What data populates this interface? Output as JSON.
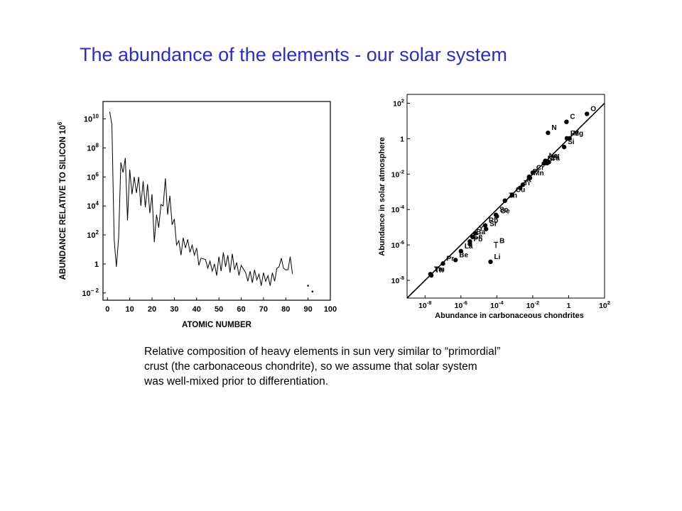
{
  "colors": {
    "title": "#2b2bd4",
    "ink": "#000000",
    "background": "#ffffff"
  },
  "title": "The abundance of the elements - our solar system",
  "caption": {
    "lines": [
      "Relative composition of heavy elements in sun very similar to “primordial”",
      "crust (the carbonaceous chondrite), so we assume that solar system",
      "was well-mixed prior to differentiation."
    ]
  },
  "chart_data": [
    {
      "type": "line",
      "title": "",
      "xlabel": "ATOMIC NUMBER",
      "ylabel": "ABUNDANCE RELATIVE TO SILICON 10",
      "ylabel_superscript": "6",
      "xlim": [
        -2,
        100
      ],
      "ylim_log10": [
        -2.5,
        11.2
      ],
      "y_scale": "log",
      "grid": false,
      "legend": "none",
      "x_ticks": [
        "0",
        "10",
        "20",
        "30",
        "40",
        "50",
        "60",
        "70",
        "80",
        "90",
        "100"
      ],
      "y_ticks": [
        {
          "base": "10",
          "exp": "10"
        },
        {
          "base": "10",
          "exp": "8"
        },
        {
          "base": "10",
          "exp": "6"
        },
        {
          "base": "10",
          "exp": "4"
        },
        {
          "base": "10",
          "exp": "2"
        },
        {
          "base": "1",
          "exp": ""
        },
        {
          "base": "10",
          "exp": "− 2"
        }
      ],
      "y_ticks_log10": [
        10,
        8,
        6,
        4,
        2,
        0,
        -2
      ],
      "series": [
        {
          "x": [
            1,
            2,
            3,
            4,
            5,
            6,
            7,
            8,
            9,
            10,
            11,
            12,
            13,
            14,
            15,
            16,
            17,
            18,
            19,
            20,
            21,
            22,
            23,
            24,
            25,
            26,
            27,
            28,
            29,
            30,
            31,
            32,
            33,
            34,
            35,
            36,
            37,
            38,
            39,
            40,
            41,
            42,
            44,
            45,
            46,
            47,
            48,
            49,
            50,
            51,
            52,
            53,
            54,
            55,
            56,
            57,
            58,
            59,
            60,
            62,
            63,
            64,
            65,
            66,
            67,
            68,
            69,
            70,
            71,
            72,
            73,
            74,
            75,
            76,
            77,
            78,
            79,
            80,
            81,
            82,
            83
          ],
          "log10_y": [
            10.5,
            9.6,
            1.7,
            -0.2,
            1.8,
            7.0,
            6.3,
            7.3,
            3.0,
            6.5,
            4.8,
            6.0,
            4.9,
            6.0,
            4.0,
            5.7,
            3.9,
            5.5,
            3.5,
            4.8,
            1.5,
            3.4,
            2.5,
            4.1,
            4.0,
            5.9,
            3.4,
            4.7,
            2.7,
            3.1,
            1.3,
            1.6,
            0.6,
            1.8,
            1.1,
            1.7,
            0.8,
            1.3,
            0.6,
            1.1,
            -0.1,
            0.4,
            0.3,
            -0.3,
            0.2,
            -0.5,
            0.0,
            -0.8,
            0.5,
            -0.5,
            0.8,
            -0.2,
            0.6,
            -0.6,
            0.7,
            -0.4,
            0.1,
            -0.8,
            -0.1,
            -0.6,
            -1.2,
            -0.5,
            -1.3,
            -0.4,
            -1.1,
            -0.7,
            -1.5,
            -0.6,
            -1.2,
            -0.8,
            -1.5,
            -0.6,
            -1.2,
            -0.3,
            -0.2,
            0.4,
            -0.3,
            -0.4,
            -0.4,
            0.5,
            -0.7
          ]
        },
        {
          "name": "",
          "points": [
            [
              90,
              -1.5
            ],
            [
              92,
              -1.9
            ]
          ]
        }
      ]
    },
    {
      "type": "scatter",
      "title": "",
      "xlabel": "Abundance in carbonaceous chondrites",
      "ylabel": "Abundance in solar atmosphere",
      "x_scale": "log",
      "y_scale": "log",
      "xlim_log10": [
        -9,
        2
      ],
      "ylim_log10": [
        -9,
        2.5
      ],
      "grid": false,
      "legend": "none",
      "reference_line": "y = x",
      "x_ticks": [
        {
          "base": "10",
          "exp": "-8",
          "log10": -8
        },
        {
          "base": "10",
          "exp": "-6",
          "log10": -6
        },
        {
          "base": "10",
          "exp": "-4",
          "log10": -4
        },
        {
          "base": "10",
          "exp": "-2",
          "log10": -2
        },
        {
          "base": "1",
          "exp": "",
          "log10": 0
        },
        {
          "base": "10",
          "exp": "2",
          "log10": 2
        }
      ],
      "y_ticks": [
        {
          "base": "10",
          "exp": "2",
          "log10": 2
        },
        {
          "base": "1",
          "exp": "",
          "log10": 0
        },
        {
          "base": "10",
          "exp": "-2",
          "log10": -2
        },
        {
          "base": "10",
          "exp": "-4",
          "log10": -4
        },
        {
          "base": "10",
          "exp": "-6",
          "log10": -6
        },
        {
          "base": "10",
          "exp": "-8",
          "log10": -8
        }
      ],
      "points": [
        {
          "label": "O",
          "log_x": 1.02,
          "log_y": 1.4
        },
        {
          "label": "C",
          "log_x": -0.12,
          "log_y": 0.95
        },
        {
          "label": "N",
          "log_x": -1.15,
          "log_y": 0.33
        },
        {
          "label": "Fe",
          "log_x": -0.1,
          "log_y": 0.02
        },
        {
          "label": "Mg",
          "log_x": 0.05,
          "log_y": 0.02
        },
        {
          "label": "Si",
          "log_x": -0.25,
          "log_y": -0.47
        },
        {
          "label": "Na",
          "log_x": -1.3,
          "log_y": -1.25
        },
        {
          "label": "Al",
          "log_x": -1.1,
          "log_y": -1.32
        },
        {
          "label": "Ni",
          "log_x": -1.38,
          "log_y": -1.4
        },
        {
          "label": "Ca",
          "log_x": -1.2,
          "log_y": -1.38
        },
        {
          "label": "Cr",
          "log_x": -2.0,
          "log_y": -1.92
        },
        {
          "label": "P",
          "log_x": -2.2,
          "log_y": -2.15
        },
        {
          "label": "Mn",
          "log_x": -2.15,
          "log_y": -2.22
        },
        {
          "label": "K",
          "log_x": -2.55,
          "log_y": -2.6
        },
        {
          "label": "Ti",
          "log_x": -2.7,
          "log_y": -2.78
        },
        {
          "label": "Cu",
          "log_x": -3.15,
          "log_y": -3.17
        },
        {
          "label": "Zn",
          "log_x": -3.55,
          "log_y": -3.5
        },
        {
          "label": "Sc",
          "log_x": -4.05,
          "log_y": -4.3
        },
        {
          "label": "Ge",
          "log_x": -4.0,
          "log_y": -4.38
        },
        {
          "label": "Rb",
          "log_x": -4.65,
          "log_y": -4.9
        },
        {
          "label": "Sr",
          "log_x": -4.6,
          "log_y": -5.1
        },
        {
          "label": "Y",
          "log_x": -5.2,
          "log_y": -5.35
        },
        {
          "label": "Ba",
          "log_x": -5.35,
          "log_y": -5.55
        },
        {
          "label": "Ce",
          "log_x": -5.5,
          "log_y": -5.8
        },
        {
          "label": "Pb",
          "log_x": -5.5,
          "log_y": -5.95
        },
        {
          "label": "B",
          "log_x": -4.05,
          "log_y": -6.05,
          "marker": "upper-limit"
        },
        {
          "label": "La",
          "log_x": -6.0,
          "log_y": -6.35
        },
        {
          "label": "Li",
          "log_x": -4.35,
          "log_y": -6.95
        },
        {
          "label": "Be",
          "log_x": -6.3,
          "log_y": -6.85
        },
        {
          "label": "Pr",
          "log_x": -7.0,
          "log_y": -7.05
        },
        {
          "label": "Tm",
          "log_x": -7.7,
          "log_y": -7.65
        },
        {
          "label": "Th",
          "log_x": -7.65,
          "log_y": -7.72
        }
      ]
    }
  ]
}
